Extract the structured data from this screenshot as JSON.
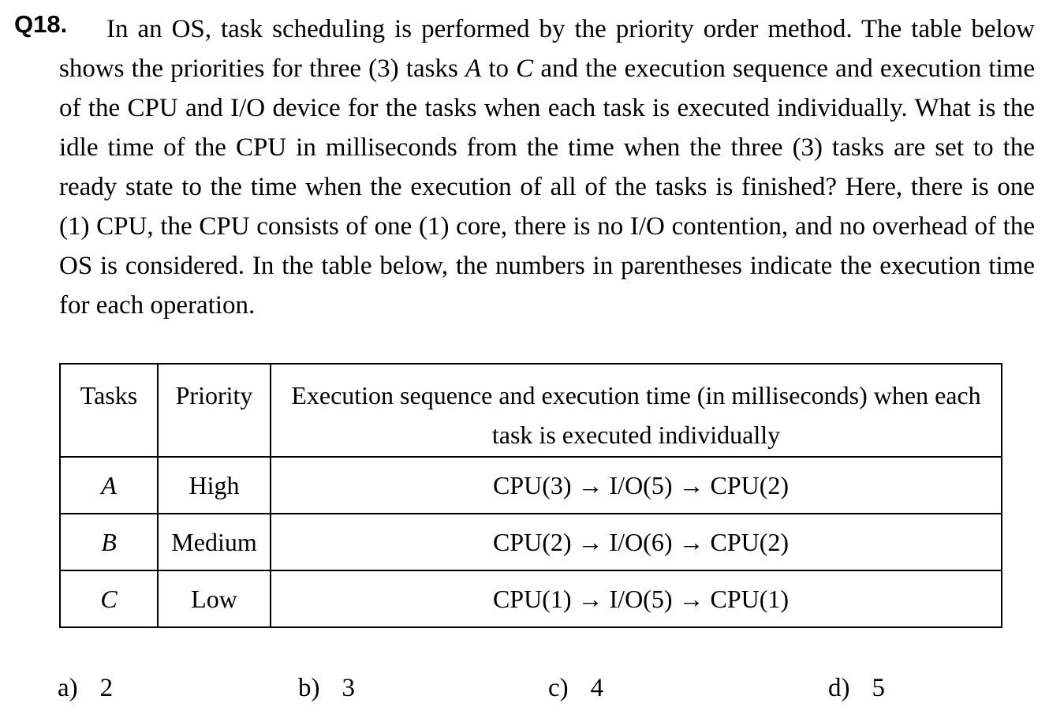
{
  "question": {
    "number": "Q18.",
    "body": {
      "part1": "In an OS, task scheduling is performed by the priority order method. The table below shows the priorities for three (3) tasks",
      "task_a": "A",
      "part2": "to",
      "task_c": "C",
      "part3": "and the execution sequence and execution time of the CPU and I/O device for the tasks when each task is executed individually. What is the idle time of the CPU in milliseconds from the time when the three (3) tasks are set to the ready state to the time when the execution of all of the tasks is finished? Here, there is one (1) CPU, the CPU consists of one (1) core, there is no I/O contention, and no overhead of the OS is considered. In the table below, the numbers in parentheses indicate the execution time for each operation."
    }
  },
  "table": {
    "headers": [
      "Tasks",
      "Priority",
      "Execution sequence and execution time (in milliseconds) when each task is executed individually"
    ],
    "rows": [
      {
        "task": "A",
        "priority": "High",
        "sequence": "CPU(3) → I/O(5) → CPU(2)"
      },
      {
        "task": "B",
        "priority": "Medium",
        "sequence": "CPU(2) → I/O(6) → CPU(2)"
      },
      {
        "task": "C",
        "priority": "Low",
        "sequence": "CPU(1) → I/O(5) → CPU(1)"
      }
    ]
  },
  "options": [
    {
      "label": "a)",
      "value": "2"
    },
    {
      "label": "b)",
      "value": "3"
    },
    {
      "label": "c)",
      "value": "4"
    },
    {
      "label": "d)",
      "value": "5"
    }
  ],
  "colors": {
    "background": "#ffffff",
    "text": "#000000",
    "table_border": "#000000"
  }
}
